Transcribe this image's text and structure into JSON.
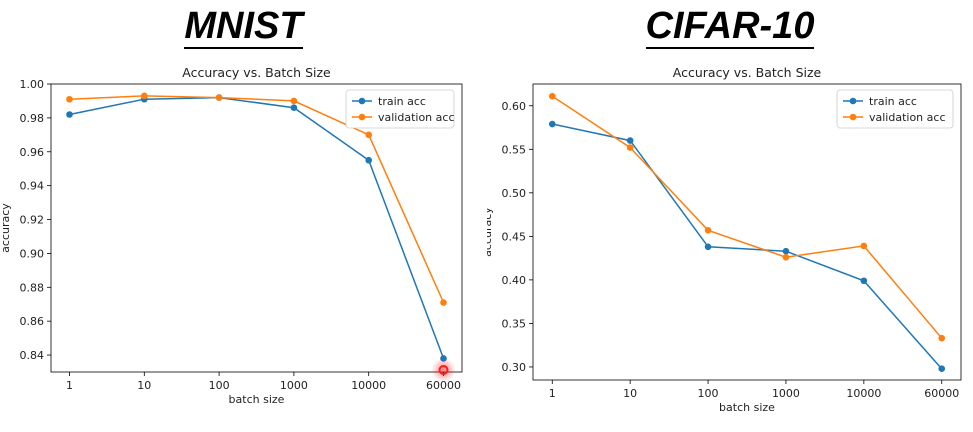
{
  "left": {
    "heading": "MNIST",
    "chart_data": {
      "type": "line",
      "title": "Accuracy vs. Batch Size",
      "xlabel": "batch size",
      "ylabel": "accuracy",
      "categories": [
        "1",
        "10",
        "100",
        "1000",
        "10000",
        "60000"
      ],
      "ylim": [
        0.83,
        1.0
      ],
      "yticks": [
        0.84,
        0.86,
        0.88,
        0.9,
        0.92,
        0.94,
        0.96,
        0.98,
        1.0
      ],
      "ytick_labels": [
        "0.84",
        "0.86",
        "0.88",
        "0.90",
        "0.92",
        "0.94",
        "0.96",
        "0.98",
        "1.00"
      ],
      "legend": "top-right",
      "series": [
        {
          "name": "train acc",
          "color": "#1f77b4",
          "values": [
            0.982,
            0.991,
            0.992,
            0.986,
            0.955,
            0.838
          ]
        },
        {
          "name": "validation acc",
          "color": "#ff7f0e",
          "values": [
            0.991,
            0.993,
            0.992,
            0.99,
            0.97,
            0.871
          ]
        }
      ],
      "highlight_color": "#ff1a1a"
    }
  },
  "right": {
    "heading": "CIFAR-10",
    "chart_data": {
      "type": "line",
      "title": "Accuracy vs. Batch Size",
      "xlabel": "batch size",
      "ylabel": "accuracy",
      "categories": [
        "1",
        "10",
        "100",
        "1000",
        "10000",
        "60000"
      ],
      "ylim": [
        0.285,
        0.625
      ],
      "yticks": [
        0.3,
        0.35,
        0.4,
        0.45,
        0.5,
        0.55,
        0.6
      ],
      "ytick_labels": [
        "0.30",
        "0.35",
        "0.40",
        "0.45",
        "0.50",
        "0.55",
        "0.60"
      ],
      "legend": "top-right",
      "series": [
        {
          "name": "train acc",
          "color": "#1f77b4",
          "values": [
            0.579,
            0.56,
            0.438,
            0.433,
            0.399,
            0.298
          ]
        },
        {
          "name": "validation acc",
          "color": "#ff7f0e",
          "values": [
            0.611,
            0.552,
            0.457,
            0.426,
            0.439,
            0.333
          ]
        }
      ]
    }
  }
}
